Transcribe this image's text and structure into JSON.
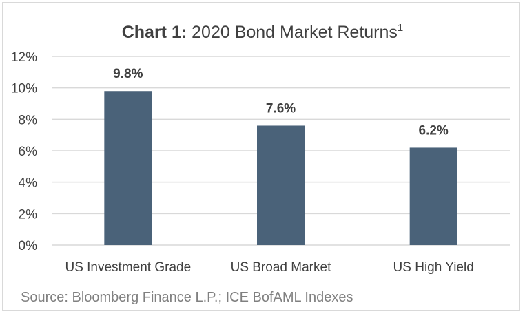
{
  "chart_data": {
    "type": "bar",
    "title_prefix": "Chart 1:",
    "title_main": " 2020 Bond Market Returns",
    "title_footnote": "1",
    "categories": [
      "US Investment Grade",
      "US Broad Market",
      "US High Yield"
    ],
    "values": [
      9.8,
      7.6,
      6.2
    ],
    "data_labels": [
      "9.8%",
      "7.6%",
      "6.2%"
    ],
    "ylim": [
      0,
      12
    ],
    "yticks": [
      0,
      2,
      4,
      6,
      8,
      10,
      12
    ],
    "ytick_labels": [
      "0%",
      "2%",
      "4%",
      "6%",
      "8%",
      "10%",
      "12%"
    ],
    "grid": true,
    "bar_color": "#4a6279",
    "source": "Source: Bloomberg Finance L.P.; ICE BofAML Indexes"
  }
}
